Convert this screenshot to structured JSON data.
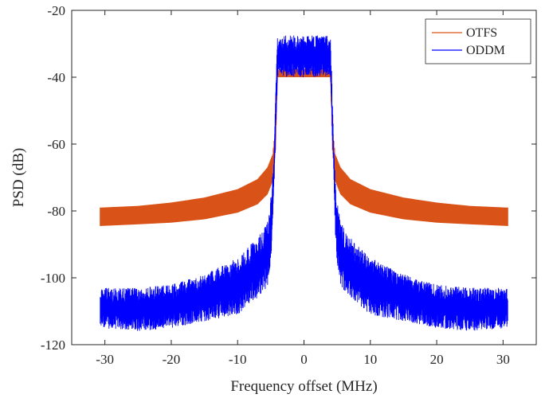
{
  "chart_data": {
    "type": "line",
    "title": "",
    "xlabel": "Frequency offset (MHz)",
    "ylabel": "PSD (dB)",
    "xlim": [
      -35,
      35
    ],
    "ylim": [
      -120,
      -20
    ],
    "xticks": [
      -30,
      -20,
      -10,
      0,
      10,
      20,
      30
    ],
    "yticks": [
      -120,
      -100,
      -80,
      -60,
      -40,
      -20
    ],
    "grid": false,
    "legend_position": "top-right",
    "series": [
      {
        "name": "OTFS",
        "color": "#D95319",
        "style": "band",
        "x": [
          -30.7,
          -25,
          -20,
          -15,
          -10,
          -7,
          -5.5,
          -4.7,
          -4.3,
          -4.0,
          -3.5,
          0,
          3.5,
          4.0,
          4.3,
          4.7,
          5.5,
          7,
          10,
          15,
          20,
          25,
          30.7
        ],
        "upper": [
          -79,
          -78.5,
          -77.5,
          -76,
          -73.5,
          -70.5,
          -67,
          -63,
          -55,
          -38,
          -37.5,
          -37.5,
          -37.5,
          -38,
          -55,
          -63,
          -67,
          -70.5,
          -73.5,
          -76,
          -77.5,
          -78.5,
          -79
        ],
        "lower": [
          -84.5,
          -84,
          -83.5,
          -82.5,
          -80.5,
          -78,
          -75,
          -71,
          -62,
          -40,
          -40,
          -40,
          -40,
          -40,
          -62,
          -71,
          -75,
          -78,
          -80.5,
          -82.5,
          -83.5,
          -84,
          -84.5
        ]
      },
      {
        "name": "ODDM",
        "color": "#0000FF",
        "style": "noisy-band",
        "x": [
          -30.7,
          -25,
          -20,
          -15,
          -10,
          -7,
          -5.5,
          -4.8,
          -4.5,
          -4.2,
          -4.0,
          -3.5,
          0,
          3.5,
          4.0,
          4.2,
          4.5,
          4.8,
          5.5,
          7,
          10,
          15,
          20,
          25,
          30.7
        ],
        "upper": [
          -103,
          -103,
          -102,
          -99,
          -94,
          -88,
          -83,
          -72,
          -62,
          -40,
          -28,
          -27.5,
          -27.5,
          -27.5,
          -28,
          -40,
          -62,
          -72,
          -83,
          -88,
          -94,
          -99,
          -102,
          -103,
          -103
        ],
        "lower": [
          -115,
          -116,
          -115,
          -113,
          -111,
          -106,
          -103,
          -92,
          -72,
          -55,
          -40,
          -40,
          -40,
          -40,
          -40,
          -55,
          -72,
          -92,
          -103,
          -106,
          -111,
          -113,
          -115,
          -116,
          -115
        ]
      }
    ]
  }
}
